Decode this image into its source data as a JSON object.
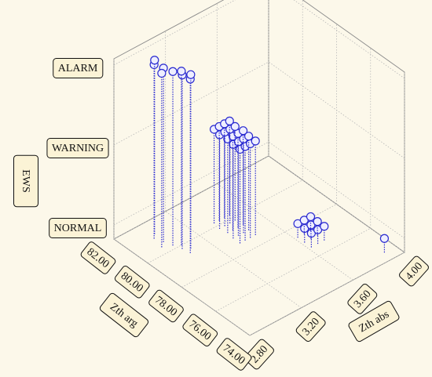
{
  "chart_data": {
    "type": "scatter3d",
    "x_label": "Zth abs",
    "y_label": "Zth arg",
    "z_label": "EWS",
    "color": "#2a2ad0",
    "xlim": [
      2.8,
      4.0
    ],
    "xticks": [
      {
        "value": 2.8,
        "label": "2.80"
      },
      {
        "value": 3.2,
        "label": "3.20"
      },
      {
        "value": 3.6,
        "label": "3.60"
      },
      {
        "value": 4.0,
        "label": "4.00"
      }
    ],
    "ylim": [
      74,
      82
    ],
    "yticks": [
      {
        "value": 74,
        "label": "74.00"
      },
      {
        "value": 76,
        "label": "76.00"
      },
      {
        "value": 78,
        "label": "78.00"
      },
      {
        "value": 80,
        "label": "80.00"
      },
      {
        "value": 82,
        "label": "82.00"
      }
    ],
    "zcategories": [
      "NORMAL",
      "WARNING",
      "ALARM"
    ],
    "grid": true,
    "x": [
      2.98,
      3.0,
      3.02,
      3.04,
      3.05,
      2.96,
      3.08,
      3.01,
      3.06,
      3.33,
      3.33,
      3.34,
      3.33,
      3.34,
      3.37,
      3.37,
      3.38,
      3.37,
      3.38,
      3.41,
      3.41,
      3.42,
      3.41,
      3.42,
      3.45,
      3.45,
      3.46,
      3.45,
      3.46,
      3.62,
      3.62,
      3.62,
      3.67,
      3.67,
      3.67,
      3.72,
      3.72,
      3.72,
      3.91
    ],
    "y": [
      81.0,
      80.6,
      80.2,
      79.8,
      79.4,
      80.4,
      79.6,
      81.2,
      80.0,
      78.6,
      79.0,
      79.4,
      79.8,
      80.2,
      78.6,
      79.0,
      79.4,
      79.8,
      80.2,
      78.6,
      79.0,
      79.4,
      79.8,
      80.2,
      78.6,
      79.0,
      79.4,
      79.8,
      80.2,
      76.6,
      77.0,
      77.4,
      76.6,
      77.0,
      77.4,
      76.6,
      77.0,
      77.4,
      74.5
    ],
    "z": [
      "ALARM",
      "ALARM",
      "ALARM",
      "ALARM",
      "ALARM",
      "ALARM",
      "ALARM",
      "ALARM",
      "ALARM",
      "WARNING",
      "WARNING",
      "WARNING",
      "WARNING",
      "WARNING",
      "WARNING",
      "WARNING",
      "WARNING",
      "WARNING",
      "WARNING",
      "WARNING",
      "WARNING",
      "WARNING",
      "WARNING",
      "WARNING",
      "WARNING",
      "WARNING",
      "WARNING",
      "WARNING",
      "WARNING",
      "NORMAL",
      "NORMAL",
      "NORMAL",
      "NORMAL",
      "NORMAL",
      "NORMAL",
      "NORMAL",
      "NORMAL",
      "NORMAL",
      "NORMAL"
    ]
  }
}
